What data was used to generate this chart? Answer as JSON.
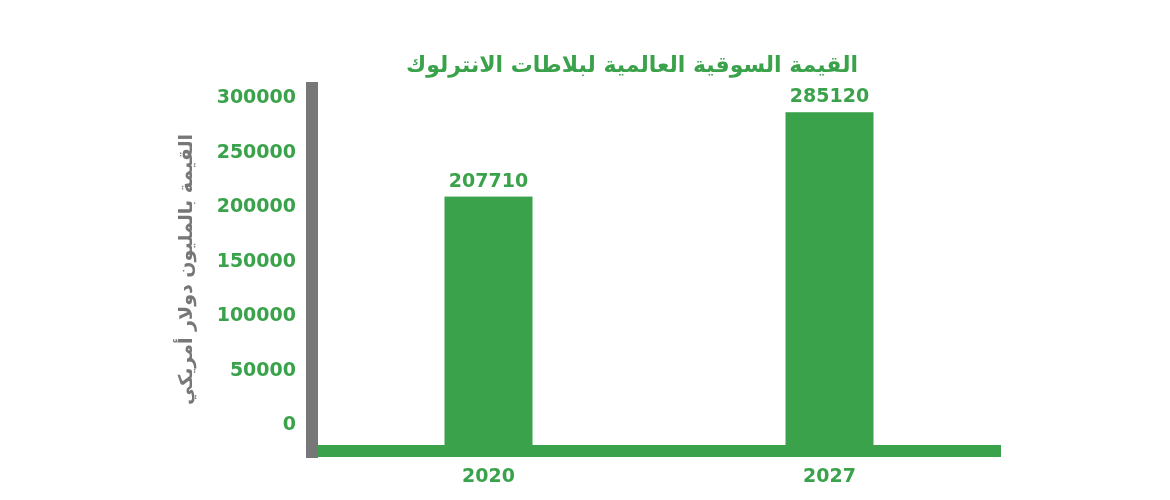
{
  "chart_data": {
    "type": "bar",
    "title": "القيمة السوقية العالمية لبلاطات الانترلوك",
    "ylabel": "القيمة بالمليون دولار أمريكي",
    "categories": [
      "2020",
      "2027"
    ],
    "values": [
      207710,
      285120
    ],
    "color": "#3aa24a",
    "ylim": [
      0,
      300000
    ],
    "yticks": [
      0,
      50000,
      100000,
      150000,
      200000,
      250000,
      300000
    ],
    "data_labels": true,
    "grid": false
  }
}
